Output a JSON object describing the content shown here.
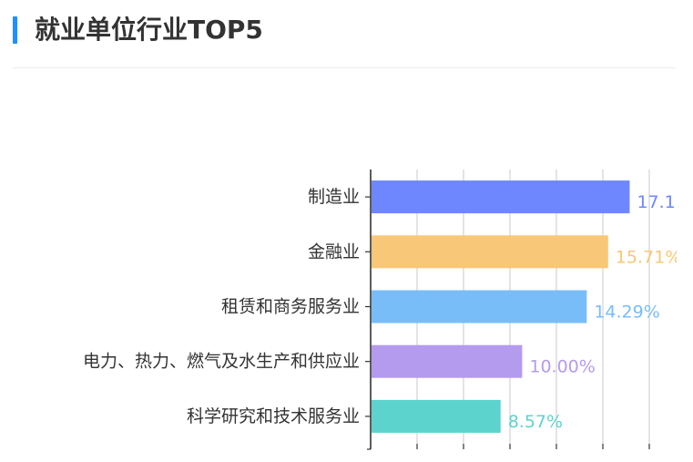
{
  "header": {
    "title": "就业单位行业TOP5",
    "accent_color": "#1e90ff"
  },
  "chart_data": {
    "type": "bar",
    "orientation": "horizontal",
    "categories": [
      "制造业",
      "金融业",
      "租赁和商务服务业",
      "电力、热力、燃气及水生产和供应业",
      "科学研究和技术服务业"
    ],
    "values": [
      17.14,
      15.71,
      14.29,
      10.0,
      8.57
    ],
    "value_labels": [
      "17.1",
      "15.71%",
      "14.29%",
      "10.00%",
      "8.57%"
    ],
    "colors": [
      "#6e87ff",
      "#f8c777",
      "#78bdf8",
      "#b49bee",
      "#5dd3cd"
    ],
    "xlim": [
      0,
      18
    ],
    "grid": true,
    "title": "",
    "xlabel": "",
    "ylabel": ""
  }
}
